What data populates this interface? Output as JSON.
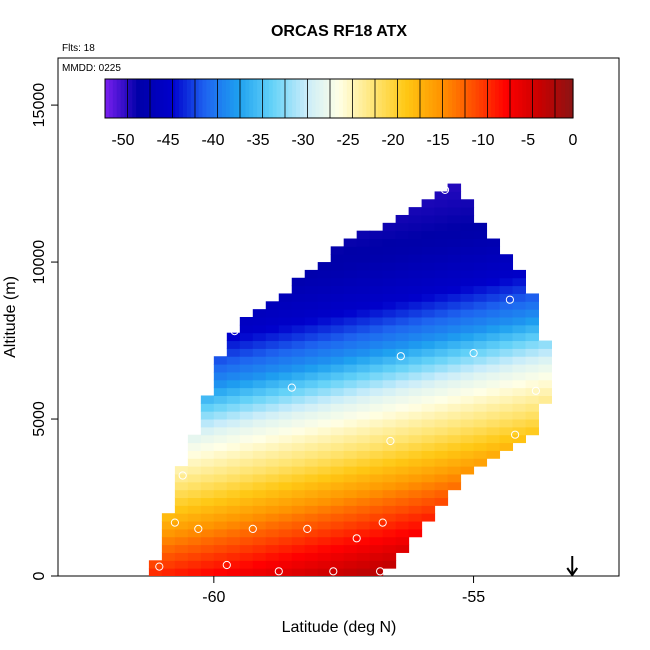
{
  "chart_data": {
    "type": "heatmap",
    "title": "ORCAS RF18 ATX",
    "annotations": {
      "flights": "Flts: 18",
      "mmdd": "MMDD: 0225"
    },
    "xlabel": "Latitude (deg N)",
    "ylabel": "Altitude (m)",
    "xlim": [
      -63.0,
      -52.2
    ],
    "ylim": [
      0,
      16500
    ],
    "xticks": [
      {
        "value": -60,
        "label": "-60"
      },
      {
        "value": -55,
        "label": "-55"
      }
    ],
    "yticks": [
      {
        "value": 0,
        "label": "0"
      },
      {
        "value": 5000,
        "label": "5000"
      },
      {
        "value": 10000,
        "label": "10000"
      },
      {
        "value": 15000,
        "label": "15000"
      }
    ],
    "colorbar": {
      "range": [
        -52,
        0
      ],
      "ticks": [
        {
          "value": -50,
          "label": "-50"
        },
        {
          "value": -45,
          "label": "-45"
        },
        {
          "value": -40,
          "label": "-40"
        },
        {
          "value": -35,
          "label": "-35"
        },
        {
          "value": -30,
          "label": "-30"
        },
        {
          "value": -25,
          "label": "-25"
        },
        {
          "value": -20,
          "label": "-20"
        },
        {
          "value": -15,
          "label": "-15"
        },
        {
          "value": -10,
          "label": "-10"
        },
        {
          "value": -5,
          "label": "-5"
        },
        {
          "value": 0,
          "label": "0"
        }
      ],
      "stops": [
        "#7a1ff0",
        "#0000a8",
        "#0000cc",
        "#1e64f0",
        "#1ea0f0",
        "#64d2f8",
        "#c8ecfa",
        "#ffffe6",
        "#ffe678",
        "#ffc814",
        "#ff9600",
        "#ff5000",
        "#ff0000",
        "#c80000",
        "#8c1414"
      ]
    },
    "field": {
      "lat_step": 0.25,
      "alt_step": 250,
      "envelope": [
        {
          "lat": -61.25,
          "min_alt": 150,
          "max_alt": 450
        },
        {
          "lat": -61.0,
          "min_alt": 150,
          "max_alt": 1800
        },
        {
          "lat": -60.75,
          "min_alt": 150,
          "max_alt": 3300
        },
        {
          "lat": -60.5,
          "min_alt": 150,
          "max_alt": 4400
        },
        {
          "lat": -60.0,
          "min_alt": 150,
          "max_alt": 7000
        },
        {
          "lat": -59.5,
          "min_alt": 150,
          "max_alt": 8200
        },
        {
          "lat": -59.0,
          "min_alt": 0,
          "max_alt": 8600
        },
        {
          "lat": -58.5,
          "min_alt": 0,
          "max_alt": 9400
        },
        {
          "lat": -58.0,
          "min_alt": 0,
          "max_alt": 10000
        },
        {
          "lat": -57.5,
          "min_alt": 0,
          "max_alt": 10600
        },
        {
          "lat": -57.0,
          "min_alt": 0,
          "max_alt": 11000
        },
        {
          "lat": -56.5,
          "min_alt": 900,
          "max_alt": 11400
        },
        {
          "lat": -56.0,
          "min_alt": 1800,
          "max_alt": 11800
        },
        {
          "lat": -55.5,
          "min_alt": 2800,
          "max_alt": 12500
        },
        {
          "lat": -55.25,
          "min_alt": 3300,
          "max_alt": 11800
        },
        {
          "lat": -55.0,
          "min_alt": 3600,
          "max_alt": 11200
        },
        {
          "lat": -54.5,
          "min_alt": 4200,
          "max_alt": 10200
        },
        {
          "lat": -54.0,
          "min_alt": 4600,
          "max_alt": 9000
        },
        {
          "lat": -53.75,
          "min_alt": 5500,
          "max_alt": 7500
        }
      ],
      "temperature_profile": [
        {
          "alt": 0,
          "temp": -3
        },
        {
          "alt": 2000,
          "temp": -12
        },
        {
          "alt": 4000,
          "temp": -22
        },
        {
          "alt": 5500,
          "temp": -28
        },
        {
          "alt": 7000,
          "temp": -38
        },
        {
          "alt": 8500,
          "temp": -45
        },
        {
          "alt": 10000,
          "temp": -48
        },
        {
          "alt": 12500,
          "temp": -50
        }
      ],
      "lat_tilt_m_per_deg": 350
    },
    "observations": [
      {
        "lat": -61.05,
        "alt": 300
      },
      {
        "lat": -60.75,
        "alt": 1700
      },
      {
        "lat": -60.6,
        "alt": 3200
      },
      {
        "lat": -60.3,
        "alt": 1500
      },
      {
        "lat": -60.1,
        "alt": 5900
      },
      {
        "lat": -59.75,
        "alt": 350
      },
      {
        "lat": -59.6,
        "alt": 7800
      },
      {
        "lat": -59.25,
        "alt": 1500
      },
      {
        "lat": -58.75,
        "alt": 150
      },
      {
        "lat": -58.5,
        "alt": 6000
      },
      {
        "lat": -58.2,
        "alt": 1500
      },
      {
        "lat": -57.7,
        "alt": 150
      },
      {
        "lat": -57.25,
        "alt": 1200
      },
      {
        "lat": -56.8,
        "alt": 150
      },
      {
        "lat": -56.75,
        "alt": 1700
      },
      {
        "lat": -56.6,
        "alt": 4300
      },
      {
        "lat": -56.4,
        "alt": 7000
      },
      {
        "lat": -55.55,
        "alt": 12300
      },
      {
        "lat": -55.0,
        "alt": 7100
      },
      {
        "lat": -54.3,
        "alt": 8800
      },
      {
        "lat": -54.2,
        "alt": 4500
      },
      {
        "lat": -53.8,
        "alt": 5900
      }
    ],
    "marker": {
      "lat": -53.1,
      "alt": 0,
      "symbol": "arrow-down"
    },
    "grid": false,
    "legend": "none"
  }
}
